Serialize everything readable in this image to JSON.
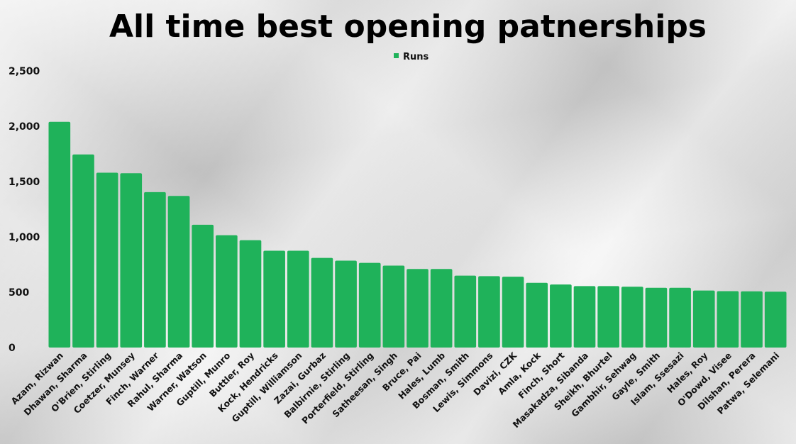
{
  "chart_data": {
    "type": "bar",
    "title": "All time best opening patnerships",
    "legend": {
      "entries": [
        "Runs"
      ],
      "placement": "top-center"
    },
    "xlabel": "",
    "ylabel": "",
    "ylim": [
      0,
      2500
    ],
    "yticks": [
      "0",
      "500",
      "1,000",
      "1,500",
      "2,000",
      "2,500"
    ],
    "ytick_values": [
      0,
      500,
      1000,
      1500,
      2000,
      2500
    ],
    "grid": false,
    "bar_color": "#1fb25a",
    "categories": [
      "Azam, Rizwan",
      "Dhawan, Sharma",
      "O'Brien, Stirling",
      "Coetzer, Munsey",
      "Finch, Warner",
      "Rahul, Sharma",
      "Warner, Watson",
      "Guptill, Munro",
      "Buttler, Roy",
      "Kock, Hendricks",
      "Guptill, Williamson",
      "Zazai, Gurbaz",
      "Balbirnie, Stirling",
      "Porterfield, Stirling",
      "Satheesan, Singh",
      "Bruce, Pai",
      "Hales, Lumb",
      "Bosman, Smith",
      "Lewis, Simmons",
      "Davizi, CZK",
      "Amla, Kock",
      "Finch, Short",
      "Masakadza, Sibanda",
      "Sheikh, Bhurtel",
      "Gambhir, Sehwag",
      "Gayle, Smith",
      "Islam, Ssesazi",
      "Hales, Roy",
      "O'Dowd, Visee",
      "Dilshan, Perera",
      "Patwa, Selemani"
    ],
    "series": [
      {
        "name": "Runs",
        "values": [
          2040,
          1745,
          1580,
          1575,
          1405,
          1370,
          1110,
          1015,
          970,
          875,
          875,
          810,
          785,
          765,
          740,
          710,
          710,
          650,
          645,
          640,
          585,
          570,
          555,
          555,
          550,
          540,
          540,
          515,
          510,
          508,
          505
        ]
      }
    ]
  }
}
